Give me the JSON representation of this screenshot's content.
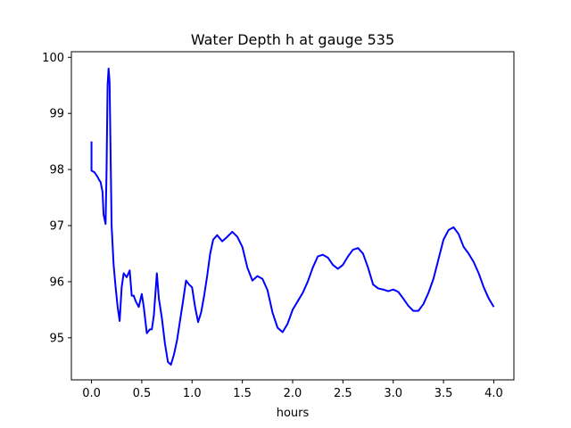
{
  "chart_data": {
    "type": "line",
    "title": "Water Depth h at gauge 535",
    "xlabel": "hours",
    "ylabel": "",
    "xlim": [
      -0.2,
      4.2
    ],
    "ylim": [
      94.25,
      100.1
    ],
    "xticks": [
      0.0,
      0.5,
      1.0,
      1.5,
      2.0,
      2.5,
      3.0,
      3.5,
      4.0
    ],
    "xtick_labels": [
      "0.0",
      "0.5",
      "1.0",
      "1.5",
      "2.0",
      "2.5",
      "3.0",
      "3.5",
      "4.0"
    ],
    "yticks": [
      95,
      96,
      97,
      98,
      99,
      100
    ],
    "ytick_labels": [
      "95",
      "96",
      "97",
      "98",
      "99",
      "100"
    ],
    "grid": false,
    "series": [
      {
        "color": "#0000ff",
        "points": [
          [
            0.0,
            98.5
          ],
          [
            0.0,
            97.98
          ],
          [
            0.03,
            97.95
          ],
          [
            0.06,
            97.87
          ],
          [
            0.08,
            97.8
          ],
          [
            0.09,
            97.78
          ],
          [
            0.11,
            97.6
          ],
          [
            0.12,
            97.2
          ],
          [
            0.14,
            97.03
          ],
          [
            0.15,
            98.0
          ],
          [
            0.16,
            99.5
          ],
          [
            0.17,
            99.8
          ],
          [
            0.18,
            99.55
          ],
          [
            0.2,
            97.0
          ],
          [
            0.22,
            96.3
          ],
          [
            0.24,
            95.9
          ],
          [
            0.26,
            95.55
          ],
          [
            0.28,
            95.3
          ],
          [
            0.3,
            95.9
          ],
          [
            0.32,
            96.15
          ],
          [
            0.35,
            96.08
          ],
          [
            0.38,
            96.2
          ],
          [
            0.4,
            95.75
          ],
          [
            0.42,
            95.75
          ],
          [
            0.44,
            95.65
          ],
          [
            0.47,
            95.55
          ],
          [
            0.5,
            95.78
          ],
          [
            0.52,
            95.55
          ],
          [
            0.55,
            95.08
          ],
          [
            0.58,
            95.15
          ],
          [
            0.6,
            95.15
          ],
          [
            0.62,
            95.4
          ],
          [
            0.65,
            96.15
          ],
          [
            0.67,
            95.7
          ],
          [
            0.7,
            95.35
          ],
          [
            0.73,
            94.9
          ],
          [
            0.76,
            94.57
          ],
          [
            0.79,
            94.52
          ],
          [
            0.82,
            94.7
          ],
          [
            0.85,
            94.95
          ],
          [
            0.88,
            95.3
          ],
          [
            0.91,
            95.65
          ],
          [
            0.94,
            96.02
          ],
          [
            0.97,
            95.95
          ],
          [
            1.0,
            95.9
          ],
          [
            1.03,
            95.55
          ],
          [
            1.06,
            95.28
          ],
          [
            1.09,
            95.45
          ],
          [
            1.12,
            95.75
          ],
          [
            1.15,
            96.1
          ],
          [
            1.18,
            96.5
          ],
          [
            1.21,
            96.75
          ],
          [
            1.25,
            96.83
          ],
          [
            1.3,
            96.72
          ],
          [
            1.35,
            96.8
          ],
          [
            1.4,
            96.89
          ],
          [
            1.45,
            96.8
          ],
          [
            1.5,
            96.62
          ],
          [
            1.55,
            96.25
          ],
          [
            1.6,
            96.02
          ],
          [
            1.65,
            96.1
          ],
          [
            1.7,
            96.05
          ],
          [
            1.75,
            95.85
          ],
          [
            1.8,
            95.45
          ],
          [
            1.85,
            95.18
          ],
          [
            1.9,
            95.1
          ],
          [
            1.95,
            95.25
          ],
          [
            2.0,
            95.5
          ],
          [
            2.05,
            95.65
          ],
          [
            2.1,
            95.8
          ],
          [
            2.15,
            96.0
          ],
          [
            2.2,
            96.25
          ],
          [
            2.25,
            96.45
          ],
          [
            2.3,
            96.48
          ],
          [
            2.35,
            96.43
          ],
          [
            2.4,
            96.3
          ],
          [
            2.45,
            96.23
          ],
          [
            2.5,
            96.3
          ],
          [
            2.55,
            96.45
          ],
          [
            2.6,
            96.57
          ],
          [
            2.65,
            96.6
          ],
          [
            2.7,
            96.5
          ],
          [
            2.75,
            96.25
          ],
          [
            2.8,
            95.95
          ],
          [
            2.85,
            95.88
          ],
          [
            2.9,
            95.86
          ],
          [
            2.95,
            95.83
          ],
          [
            3.0,
            95.86
          ],
          [
            3.05,
            95.82
          ],
          [
            3.1,
            95.7
          ],
          [
            3.15,
            95.57
          ],
          [
            3.2,
            95.48
          ],
          [
            3.25,
            95.48
          ],
          [
            3.3,
            95.6
          ],
          [
            3.35,
            95.8
          ],
          [
            3.4,
            96.05
          ],
          [
            3.45,
            96.4
          ],
          [
            3.5,
            96.75
          ],
          [
            3.55,
            96.92
          ],
          [
            3.6,
            96.97
          ],
          [
            3.65,
            96.85
          ],
          [
            3.7,
            96.62
          ],
          [
            3.75,
            96.5
          ],
          [
            3.8,
            96.35
          ],
          [
            3.85,
            96.15
          ],
          [
            3.9,
            95.9
          ],
          [
            3.95,
            95.7
          ],
          [
            4.0,
            95.55
          ]
        ]
      }
    ]
  }
}
